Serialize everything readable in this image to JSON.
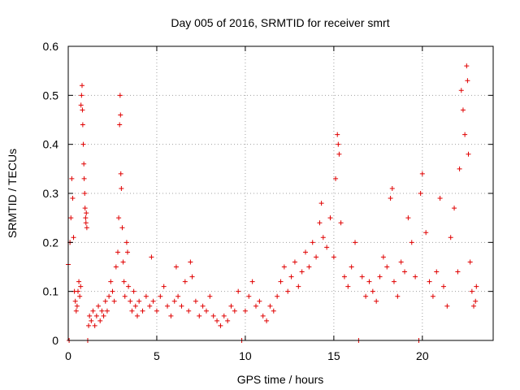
{
  "chart_data": {
    "type": "scatter",
    "title": "Day 005 of 2016, SRMTID for receiver smrt",
    "xlabel": "GPS time / hours",
    "ylabel": "SRMTID / TECUs",
    "xlim": [
      0,
      24
    ],
    "ylim": [
      0,
      0.6
    ],
    "x_ticks": [
      0,
      5,
      10,
      15,
      20
    ],
    "x_tick_labels": [
      "0",
      "5",
      "10",
      "15",
      "20"
    ],
    "y_ticks": [
      0,
      0.1,
      0.2,
      0.3,
      0.4,
      0.5,
      0.6
    ],
    "y_tick_labels": [
      "0",
      "0.1",
      "0.2",
      "0.3",
      "0.4",
      "0.5",
      "0.6"
    ],
    "grid": true,
    "marker": "+",
    "color": "#e00000",
    "series": [
      {
        "name": "SRMTID",
        "points": [
          [
            0.0,
            0.155
          ],
          [
            0.05,
            0.0
          ],
          [
            0.1,
            0.2
          ],
          [
            0.15,
            0.25
          ],
          [
            0.2,
            0.33
          ],
          [
            0.25,
            0.29
          ],
          [
            0.3,
            0.21
          ],
          [
            0.35,
            0.1
          ],
          [
            0.4,
            0.08
          ],
          [
            0.45,
            0.06
          ],
          [
            0.5,
            0.07
          ],
          [
            0.55,
            0.1
          ],
          [
            0.6,
            0.12
          ],
          [
            0.65,
            0.09
          ],
          [
            0.7,
            0.11
          ],
          [
            0.72,
            0.48
          ],
          [
            0.75,
            0.5
          ],
          [
            0.78,
            0.52
          ],
          [
            0.8,
            0.47
          ],
          [
            0.82,
            0.44
          ],
          [
            0.85,
            0.4
          ],
          [
            0.88,
            0.36
          ],
          [
            0.9,
            0.33
          ],
          [
            0.93,
            0.3
          ],
          [
            0.95,
            0.27
          ],
          [
            0.98,
            0.25
          ],
          [
            1.0,
            0.24
          ],
          [
            1.02,
            0.26
          ],
          [
            1.05,
            0.23
          ],
          [
            1.1,
            0.0
          ],
          [
            1.15,
            0.03
          ],
          [
            1.2,
            0.05
          ],
          [
            1.3,
            0.04
          ],
          [
            1.4,
            0.06
          ],
          [
            1.5,
            0.03
          ],
          [
            1.6,
            0.05
          ],
          [
            1.7,
            0.07
          ],
          [
            1.8,
            0.04
          ],
          [
            1.9,
            0.06
          ],
          [
            2.0,
            0.05
          ],
          [
            2.1,
            0.08
          ],
          [
            2.2,
            0.06
          ],
          [
            2.3,
            0.09
          ],
          [
            2.4,
            0.12
          ],
          [
            2.5,
            0.1
          ],
          [
            2.6,
            0.08
          ],
          [
            2.7,
            0.15
          ],
          [
            2.8,
            0.18
          ],
          [
            2.85,
            0.25
          ],
          [
            2.9,
            0.44
          ],
          [
            2.93,
            0.5
          ],
          [
            2.95,
            0.46
          ],
          [
            2.97,
            0.34
          ],
          [
            3.0,
            0.31
          ],
          [
            3.05,
            0.23
          ],
          [
            3.1,
            0.16
          ],
          [
            3.15,
            0.12
          ],
          [
            3.2,
            0.09
          ],
          [
            3.3,
            0.2
          ],
          [
            3.35,
            0.18
          ],
          [
            3.4,
            0.11
          ],
          [
            3.5,
            0.08
          ],
          [
            3.6,
            0.06
          ],
          [
            3.7,
            0.1
          ],
          [
            3.8,
            0.07
          ],
          [
            3.9,
            0.05
          ],
          [
            4.0,
            0.08
          ],
          [
            4.2,
            0.06
          ],
          [
            4.4,
            0.09
          ],
          [
            4.6,
            0.07
          ],
          [
            4.7,
            0.17
          ],
          [
            4.8,
            0.08
          ],
          [
            5.0,
            0.06
          ],
          [
            5.2,
            0.09
          ],
          [
            5.4,
            0.11
          ],
          [
            5.6,
            0.07
          ],
          [
            5.8,
            0.05
          ],
          [
            6.0,
            0.08
          ],
          [
            6.1,
            0.15
          ],
          [
            6.2,
            0.09
          ],
          [
            6.4,
            0.07
          ],
          [
            6.6,
            0.12
          ],
          [
            6.8,
            0.06
          ],
          [
            6.9,
            0.16
          ],
          [
            7.0,
            0.13
          ],
          [
            7.2,
            0.08
          ],
          [
            7.4,
            0.05
          ],
          [
            7.6,
            0.07
          ],
          [
            7.8,
            0.06
          ],
          [
            8.0,
            0.09
          ],
          [
            8.2,
            0.05
          ],
          [
            8.4,
            0.04
          ],
          [
            8.6,
            0.03
          ],
          [
            8.8,
            0.05
          ],
          [
            9.0,
            0.04
          ],
          [
            9.2,
            0.07
          ],
          [
            9.4,
            0.06
          ],
          [
            9.6,
            0.1
          ],
          [
            9.8,
            0.0
          ],
          [
            10.0,
            0.06
          ],
          [
            10.2,
            0.09
          ],
          [
            10.4,
            0.12
          ],
          [
            10.6,
            0.07
          ],
          [
            10.8,
            0.08
          ],
          [
            11.0,
            0.05
          ],
          [
            11.2,
            0.04
          ],
          [
            11.4,
            0.07
          ],
          [
            11.6,
            0.06
          ],
          [
            11.8,
            0.09
          ],
          [
            12.0,
            0.12
          ],
          [
            12.2,
            0.15
          ],
          [
            12.4,
            0.1
          ],
          [
            12.6,
            0.13
          ],
          [
            12.8,
            0.16
          ],
          [
            13.0,
            0.11
          ],
          [
            13.2,
            0.14
          ],
          [
            13.4,
            0.18
          ],
          [
            13.6,
            0.15
          ],
          [
            13.8,
            0.2
          ],
          [
            14.0,
            0.17
          ],
          [
            14.2,
            0.24
          ],
          [
            14.3,
            0.28
          ],
          [
            14.4,
            0.21
          ],
          [
            14.6,
            0.19
          ],
          [
            14.8,
            0.25
          ],
          [
            15.0,
            0.17
          ],
          [
            15.1,
            0.33
          ],
          [
            15.2,
            0.42
          ],
          [
            15.25,
            0.4
          ],
          [
            15.3,
            0.38
          ],
          [
            15.4,
            0.24
          ],
          [
            15.6,
            0.13
          ],
          [
            15.8,
            0.11
          ],
          [
            16.0,
            0.15
          ],
          [
            16.2,
            0.2
          ],
          [
            16.4,
            0.0
          ],
          [
            16.6,
            0.13
          ],
          [
            16.8,
            0.09
          ],
          [
            17.0,
            0.12
          ],
          [
            17.2,
            0.1
          ],
          [
            17.4,
            0.08
          ],
          [
            17.6,
            0.13
          ],
          [
            17.8,
            0.17
          ],
          [
            18.0,
            0.15
          ],
          [
            18.2,
            0.29
          ],
          [
            18.3,
            0.31
          ],
          [
            18.4,
            0.12
          ],
          [
            18.6,
            0.09
          ],
          [
            18.8,
            0.16
          ],
          [
            19.0,
            0.14
          ],
          [
            19.2,
            0.25
          ],
          [
            19.4,
            0.2
          ],
          [
            19.6,
            0.13
          ],
          [
            19.8,
            0.0
          ],
          [
            19.9,
            0.3
          ],
          [
            20.0,
            0.34
          ],
          [
            20.2,
            0.22
          ],
          [
            20.4,
            0.12
          ],
          [
            20.6,
            0.09
          ],
          [
            20.8,
            0.14
          ],
          [
            21.0,
            0.29
          ],
          [
            21.2,
            0.11
          ],
          [
            21.4,
            0.07
          ],
          [
            21.6,
            0.21
          ],
          [
            21.8,
            0.27
          ],
          [
            22.0,
            0.14
          ],
          [
            22.1,
            0.35
          ],
          [
            22.2,
            0.51
          ],
          [
            22.3,
            0.47
          ],
          [
            22.4,
            0.42
          ],
          [
            22.5,
            0.56
          ],
          [
            22.55,
            0.53
          ],
          [
            22.6,
            0.38
          ],
          [
            22.7,
            0.16
          ],
          [
            22.8,
            0.1
          ],
          [
            22.9,
            0.07
          ],
          [
            23.0,
            0.08
          ],
          [
            23.05,
            0.11
          ]
        ]
      }
    ]
  }
}
